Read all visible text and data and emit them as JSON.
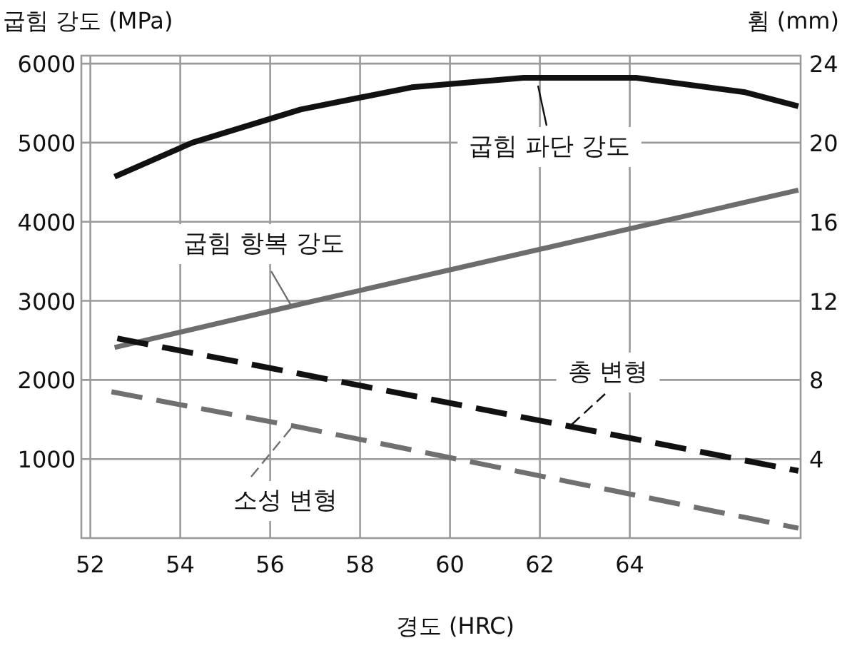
{
  "chart_data": {
    "type": "line",
    "xlabel": "경도 (HRC)",
    "ylabel": "굽힘 강도 (MPa)",
    "y2label": "휨 (mm)",
    "xlim": [
      51.8,
      67.8
    ],
    "xticks": [
      52,
      54,
      56,
      58,
      60,
      62,
      64
    ],
    "ylim": [
      0,
      6100
    ],
    "yticks": [
      1000,
      2000,
      3000,
      4000,
      5000,
      6000
    ],
    "y2lim": [
      0,
      24.4
    ],
    "y2ticks": [
      4,
      8,
      12,
      16,
      20,
      24
    ],
    "grid": true,
    "legend": "center",
    "series": [
      {
        "name": "굽힘 파단 강도",
        "color": "#111111",
        "line_style": "solid",
        "x": [
          52.54,
          54.27,
          56.68,
          59.15,
          61.64,
          64.14,
          66.54,
          67.75
        ],
        "values": [
          4570,
          5000,
          5420,
          5700,
          5820,
          5820,
          5640,
          5460
        ]
      },
      {
        "name": "굽힘 항복 강도",
        "color": "#6d6d6d",
        "line_style": "solid",
        "x": [
          52.54,
          56.68,
          67.75
        ],
        "values": [
          2410,
          2960,
          4400
        ]
      },
      {
        "name": "총 변형",
        "color": "#111111",
        "line_style": "dashed",
        "axis": "y2",
        "x": [
          52.6,
          56.68,
          67.75
        ],
        "values": [
          10.1,
          8.3,
          3.4
        ]
      },
      {
        "name": "소성 변형",
        "color": "#707070",
        "line_style": "dashed",
        "axis": "y2",
        "x": [
          52.47,
          56.68,
          67.75
        ],
        "values": [
          7.4,
          5.6,
          0.5
        ]
      }
    ]
  }
}
